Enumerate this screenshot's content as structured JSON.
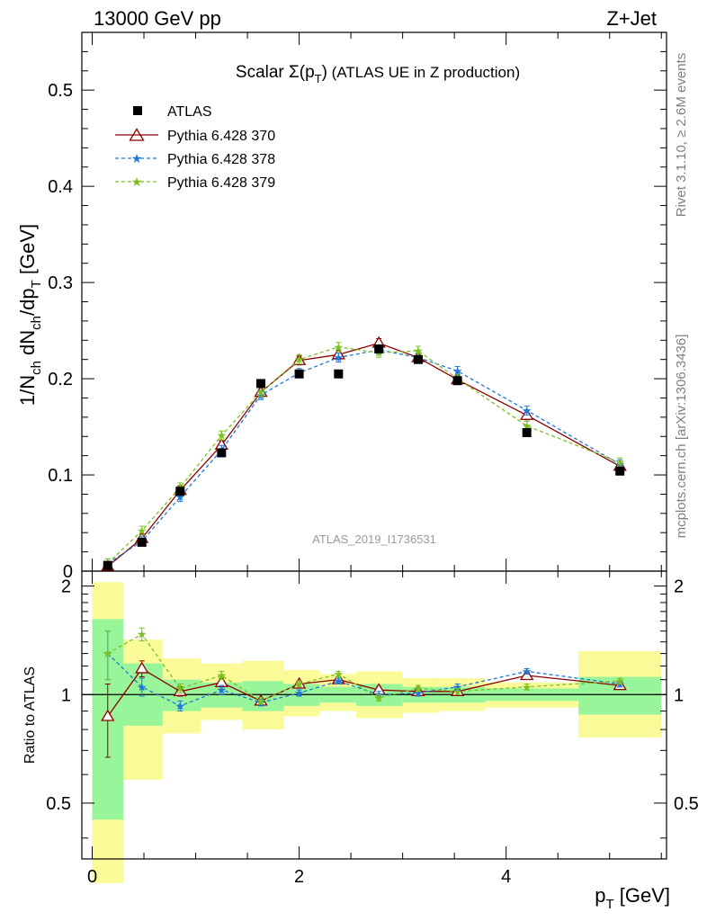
{
  "header": {
    "left": "13000 GeV pp",
    "right": "Z+Jet"
  },
  "title": {
    "prefix": "Scalar ",
    "sigma": "Σ(p",
    "sub": "T",
    "close": ")",
    "rest": " (ATLAS UE in Z production)"
  },
  "side_labels": {
    "rivet": "Rivet 3.1.10, ≥ 2.6M events",
    "mcplots": "mcplots.cern.ch [arXiv:1306.3436]"
  },
  "watermark": "ATLAS_2019_I1736531",
  "ratio_ylabel": "Ratio to ATLAS",
  "main_ylabel": {
    "a": "1/N",
    "a_sub": "ch",
    "b": " dN",
    "b_sub": "ch",
    "c": "/dp",
    "c_sub": "T",
    "d": " [GeV]"
  },
  "xlabel": {
    "a": "p",
    "a_sub": "T",
    "b": " [GeV]"
  },
  "main_ticks": {
    "values": [
      0,
      0.1,
      0.2,
      0.3,
      0.4,
      0.5
    ],
    "labels": [
      "0",
      "0.1",
      "0.2",
      "0.3",
      "0.4",
      "0.5"
    ]
  },
  "ratio_ticks": {
    "values": [
      0.5,
      1,
      2
    ],
    "labels": [
      "0.5",
      "1",
      "2"
    ]
  },
  "x_ticks": {
    "values": [
      0,
      2,
      4
    ],
    "labels": [
      "0",
      "2",
      "4"
    ]
  },
  "colors": {
    "data": "#000000",
    "p370": "#8b0000",
    "p378": "#1f77d8",
    "p379": "#7cc020",
    "band_inner": "#99f599",
    "band_outer": "#fafa99"
  },
  "chart_data": {
    "type": "line",
    "title": "Scalar Σ(pT) (ATLAS UE in Z production)",
    "xlabel": "p_T [GeV]",
    "ylabel": "1/N_ch dN_ch/dp_T [GeV]",
    "xlim": [
      -0.1,
      5.55
    ],
    "ylim": [
      0,
      0.56
    ],
    "ratio_ylim": [
      0.35,
      2.2
    ],
    "ratio_scale": "log",
    "grid": false,
    "legend": "top-left",
    "x": [
      0.15,
      0.48,
      0.85,
      1.25,
      1.63,
      2.0,
      2.38,
      2.77,
      3.15,
      3.53,
      4.2,
      5.1
    ],
    "bin_edges": [
      0,
      0.3,
      0.68,
      1.05,
      1.45,
      1.85,
      2.2,
      2.55,
      3.0,
      3.35,
      3.8,
      4.7,
      5.5
    ],
    "series": [
      {
        "name": "ATLAS",
        "values": [
          0.006,
          0.03,
          0.083,
          0.123,
          0.195,
          0.205,
          0.205,
          0.231,
          0.22,
          0.198,
          0.144,
          0.104
        ]
      },
      {
        "name": "Pythia 6.428 370",
        "values": [
          0.005,
          0.034,
          0.084,
          0.131,
          0.186,
          0.219,
          0.225,
          0.237,
          0.222,
          0.199,
          0.162,
          0.109
        ]
      },
      {
        "name": "Pythia 6.428 378",
        "values": [
          0.008,
          0.031,
          0.077,
          0.126,
          0.183,
          0.206,
          0.222,
          0.23,
          0.222,
          0.208,
          0.167,
          0.111
        ]
      },
      {
        "name": "Pythia 6.428 379",
        "values": [
          0.008,
          0.042,
          0.087,
          0.141,
          0.186,
          0.22,
          0.233,
          0.227,
          0.229,
          0.2,
          0.151,
          0.113
        ]
      }
    ],
    "ratio": [
      {
        "name": "Pythia 6.428 370",
        "values": [
          0.87,
          1.18,
          1.02,
          1.08,
          0.96,
          1.07,
          1.1,
          1.03,
          1.02,
          1.02,
          1.13,
          1.06
        ]
      },
      {
        "name": "Pythia 6.428 378",
        "values": [
          1.3,
          1.05,
          0.93,
          1.03,
          0.95,
          1.01,
          1.09,
          1.0,
          1.01,
          1.05,
          1.16,
          1.07
        ]
      },
      {
        "name": "Pythia 6.428 379",
        "values": [
          1.3,
          1.47,
          1.04,
          1.13,
          0.96,
          1.07,
          1.14,
          0.98,
          1.04,
          1.02,
          1.05,
          1.09
        ]
      }
    ],
    "ratio_errors": [
      0.2,
      0.06,
      0.03,
      0.03,
      0.02,
      0.02,
      0.02,
      0.02,
      0.02,
      0.02,
      0.02,
      0.02
    ],
    "data_band_inner": [
      [
        0.45,
        1.62
      ],
      [
        0.82,
        1.22
      ],
      [
        0.9,
        1.1
      ],
      [
        0.92,
        1.08
      ],
      [
        0.9,
        1.09
      ],
      [
        0.93,
        1.07
      ],
      [
        0.95,
        1.05
      ],
      [
        0.93,
        1.07
      ],
      [
        0.95,
        1.05
      ],
      [
        0.95,
        1.05
      ],
      [
        0.96,
        1.04
      ],
      [
        0.88,
        1.12
      ]
    ],
    "data_band_outer": [
      [
        0.3,
        2.05
      ],
      [
        0.58,
        1.42
      ],
      [
        0.78,
        1.26
      ],
      [
        0.85,
        1.22
      ],
      [
        0.8,
        1.24
      ],
      [
        0.87,
        1.17
      ],
      [
        0.9,
        1.14
      ],
      [
        0.86,
        1.16
      ],
      [
        0.89,
        1.11
      ],
      [
        0.9,
        1.11
      ],
      [
        0.92,
        1.08
      ],
      [
        0.76,
        1.32
      ]
    ]
  }
}
